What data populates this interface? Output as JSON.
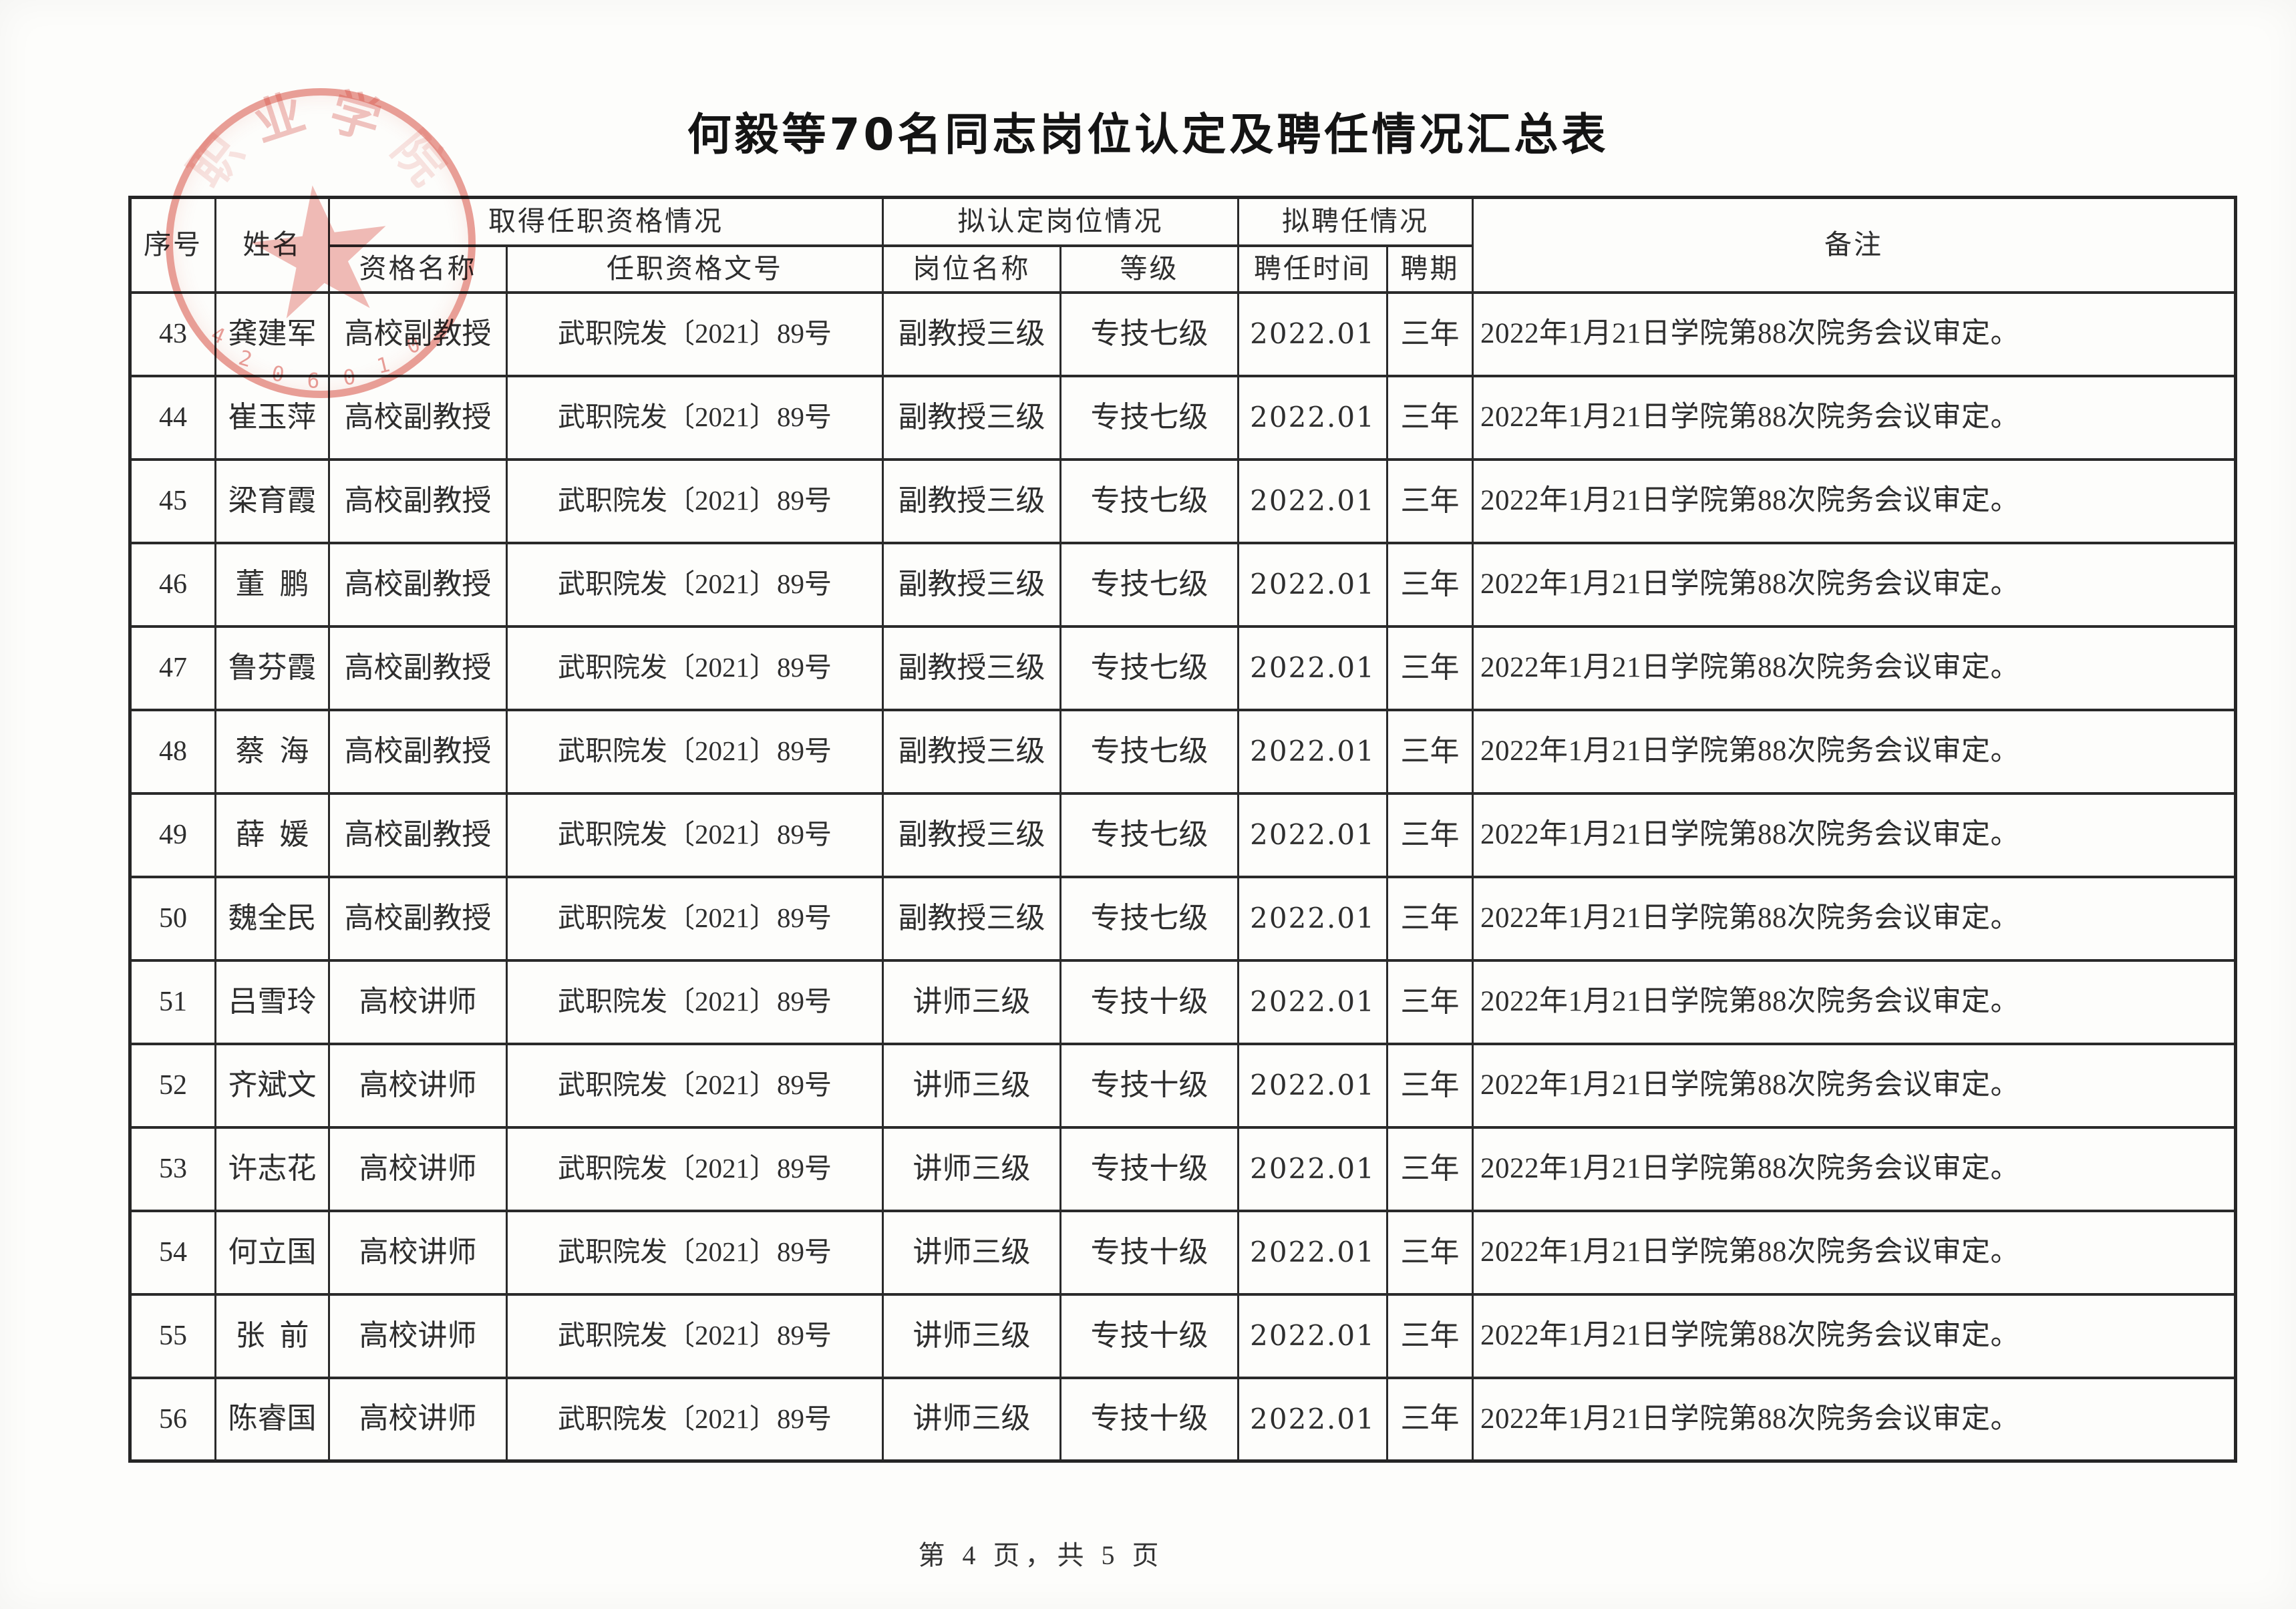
{
  "title": "何毅等70名同志岗位认定及聘任情况汇总表",
  "stamp": {
    "arc_chars": [
      "职",
      "业",
      "学",
      "院"
    ],
    "star": "★",
    "serial": "4206010",
    "color": "#d6463a"
  },
  "table": {
    "header": {
      "serial": "序号",
      "name": "姓名",
      "qualification_group": "取得任职资格情况",
      "qualification_name": "资格名称",
      "qualification_doc": "任职资格文号",
      "post_group": "拟认定岗位情况",
      "post_name": "岗位名称",
      "grade": "等级",
      "appointment_group": "拟聘任情况",
      "appointment_time": "聘任时间",
      "term": "聘期",
      "remark": "备注"
    },
    "rows": [
      {
        "no": "43",
        "name": "龚建军",
        "qual": "高校副教授",
        "doc": "武职院发〔2021〕89号",
        "post": "副教授三级",
        "grade": "专技七级",
        "time": "2022.01",
        "term": "三年",
        "remark": "2022年1月21日学院第88次院务会议审定。"
      },
      {
        "no": "44",
        "name": "崔玉萍",
        "qual": "高校副教授",
        "doc": "武职院发〔2021〕89号",
        "post": "副教授三级",
        "grade": "专技七级",
        "time": "2022.01",
        "term": "三年",
        "remark": "2022年1月21日学院第88次院务会议审定。"
      },
      {
        "no": "45",
        "name": "梁育霞",
        "qual": "高校副教授",
        "doc": "武职院发〔2021〕89号",
        "post": "副教授三级",
        "grade": "专技七级",
        "time": "2022.01",
        "term": "三年",
        "remark": "2022年1月21日学院第88次院务会议审定。"
      },
      {
        "no": "46",
        "name": "董鹏",
        "qual": "高校副教授",
        "doc": "武职院发〔2021〕89号",
        "post": "副教授三级",
        "grade": "专技七级",
        "time": "2022.01",
        "term": "三年",
        "remark": "2022年1月21日学院第88次院务会议审定。"
      },
      {
        "no": "47",
        "name": "鲁芬霞",
        "qual": "高校副教授",
        "doc": "武职院发〔2021〕89号",
        "post": "副教授三级",
        "grade": "专技七级",
        "time": "2022.01",
        "term": "三年",
        "remark": "2022年1月21日学院第88次院务会议审定。"
      },
      {
        "no": "48",
        "name": "蔡海",
        "qual": "高校副教授",
        "doc": "武职院发〔2021〕89号",
        "post": "副教授三级",
        "grade": "专技七级",
        "time": "2022.01",
        "term": "三年",
        "remark": "2022年1月21日学院第88次院务会议审定。"
      },
      {
        "no": "49",
        "name": "薛媛",
        "qual": "高校副教授",
        "doc": "武职院发〔2021〕89号",
        "post": "副教授三级",
        "grade": "专技七级",
        "time": "2022.01",
        "term": "三年",
        "remark": "2022年1月21日学院第88次院务会议审定。"
      },
      {
        "no": "50",
        "name": "魏全民",
        "qual": "高校副教授",
        "doc": "武职院发〔2021〕89号",
        "post": "副教授三级",
        "grade": "专技七级",
        "time": "2022.01",
        "term": "三年",
        "remark": "2022年1月21日学院第88次院务会议审定。"
      },
      {
        "no": "51",
        "name": "吕雪玲",
        "qual": "高校讲师",
        "doc": "武职院发〔2021〕89号",
        "post": "讲师三级",
        "grade": "专技十级",
        "time": "2022.01",
        "term": "三年",
        "remark": "2022年1月21日学院第88次院务会议审定。"
      },
      {
        "no": "52",
        "name": "齐斌文",
        "qual": "高校讲师",
        "doc": "武职院发〔2021〕89号",
        "post": "讲师三级",
        "grade": "专技十级",
        "time": "2022.01",
        "term": "三年",
        "remark": "2022年1月21日学院第88次院务会议审定。"
      },
      {
        "no": "53",
        "name": "许志花",
        "qual": "高校讲师",
        "doc": "武职院发〔2021〕89号",
        "post": "讲师三级",
        "grade": "专技十级",
        "time": "2022.01",
        "term": "三年",
        "remark": "2022年1月21日学院第88次院务会议审定。"
      },
      {
        "no": "54",
        "name": "何立国",
        "qual": "高校讲师",
        "doc": "武职院发〔2021〕89号",
        "post": "讲师三级",
        "grade": "专技十级",
        "time": "2022.01",
        "term": "三年",
        "remark": "2022年1月21日学院第88次院务会议审定。"
      },
      {
        "no": "55",
        "name": "张前",
        "qual": "高校讲师",
        "doc": "武职院发〔2021〕89号",
        "post": "讲师三级",
        "grade": "专技十级",
        "time": "2022.01",
        "term": "三年",
        "remark": "2022年1月21日学院第88次院务会议审定。"
      },
      {
        "no": "56",
        "name": "陈睿国",
        "qual": "高校讲师",
        "doc": "武职院发〔2021〕89号",
        "post": "讲师三级",
        "grade": "专技十级",
        "time": "2022.01",
        "term": "三年",
        "remark": "2022年1月21日学院第88次院务会议审定。"
      }
    ]
  },
  "footer": {
    "page_text": "第 4 页，共 5 页"
  }
}
